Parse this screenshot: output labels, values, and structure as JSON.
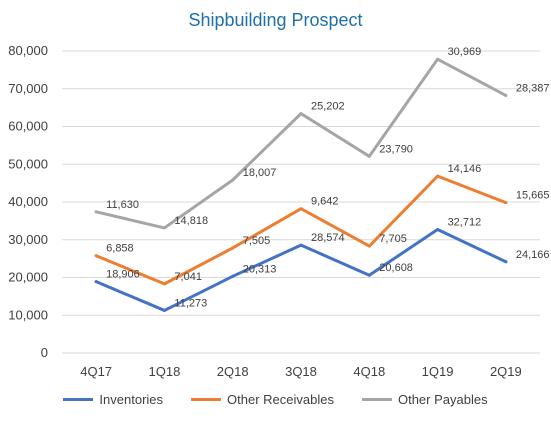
{
  "colors": {
    "title": "#1F6FA8",
    "Inventories": "#4472C4",
    "Other Receivables": "#ED7D31",
    "Other Payables": "#A5A5A5",
    "gridline": "#D9D9D9",
    "text": "#404040"
  },
  "chart_data": {
    "type": "line",
    "title": "Shipbuilding Prospect",
    "xlabel": "",
    "ylabel": "",
    "categories": [
      "4Q17",
      "1Q18",
      "2Q18",
      "3Q18",
      "4Q18",
      "1Q19",
      "2Q19"
    ],
    "yticks": [
      "0",
      "10,000",
      "20,000",
      "30,000",
      "40,000",
      "50,000",
      "60,000",
      "70,000",
      "80,000"
    ],
    "ylim": [
      0,
      80000
    ],
    "grid": true,
    "stacked": true,
    "legend_position": "bottom",
    "series": [
      {
        "name": "Inventories",
        "values": [
          18906,
          11273,
          20313,
          28574,
          20608,
          32712,
          24166
        ],
        "labels": [
          "18,906",
          "11,273",
          "20,313",
          "28,574",
          "20,608",
          "32,712",
          "24,166"
        ]
      },
      {
        "name": "Other Receivables",
        "values": [
          6858,
          7041,
          7505,
          9642,
          7705,
          14146,
          15665
        ],
        "labels": [
          "6,858",
          "7,041",
          "7,505",
          "9,642",
          "7,705",
          "14,146",
          "15,665"
        ]
      },
      {
        "name": "Other Payables",
        "values": [
          11630,
          14818,
          18007,
          25202,
          23790,
          30969,
          28387
        ],
        "labels": [
          "11,630",
          "14,818",
          "18,007",
          "25,202",
          "23,790",
          "30,969",
          "28,387"
        ]
      }
    ]
  }
}
